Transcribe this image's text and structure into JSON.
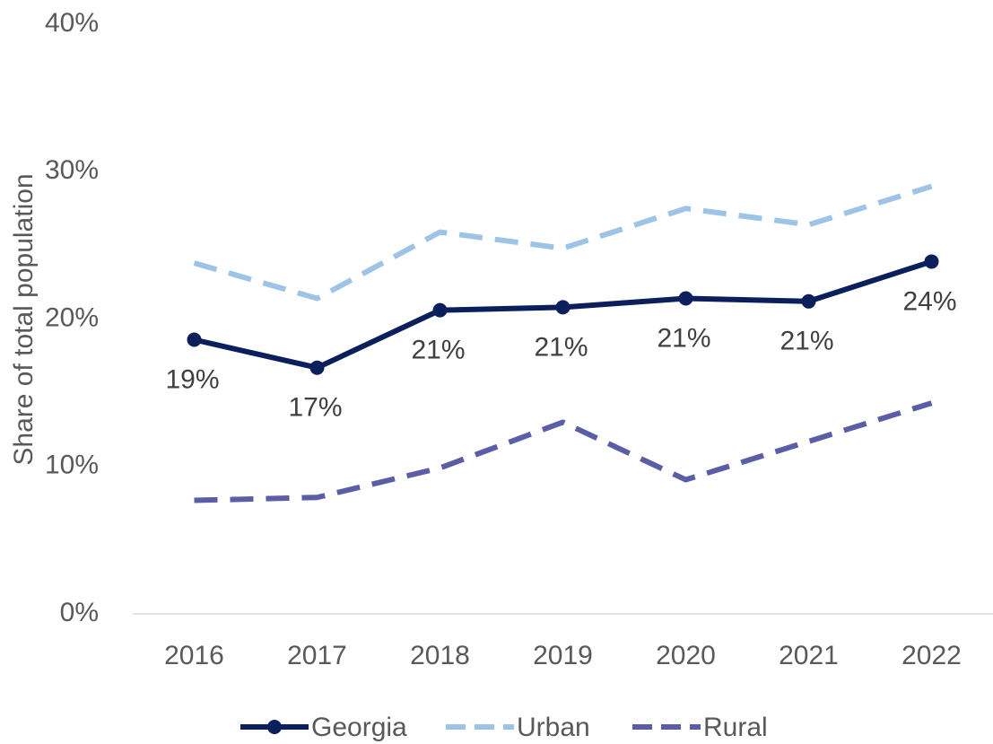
{
  "chart_data": {
    "type": "line",
    "y_label": "Share of total population",
    "categories": [
      "2016",
      "2017",
      "2018",
      "2019",
      "2020",
      "2021",
      "2022"
    ],
    "series": [
      {
        "name": "Georgia",
        "color": "#0b1f5c",
        "values": [
          18.6,
          16.7,
          20.6,
          20.8,
          21.4,
          21.2,
          23.9
        ],
        "value_labels": [
          "19%",
          "17%",
          "21%",
          "21%",
          "21%",
          "21%",
          "24%"
        ]
      },
      {
        "name": "Urban",
        "color": "#9dc3e6",
        "values": [
          23.8,
          21.4,
          25.9,
          24.8,
          27.5,
          26.4,
          29.0
        ]
      },
      {
        "name": "Rural",
        "color": "#5b5ea6",
        "values": [
          7.7,
          7.9,
          9.9,
          13.0,
          9.1,
          11.7,
          14.3
        ]
      }
    ],
    "ylim": [
      0,
      40
    ],
    "yticks": [
      {
        "value": 0,
        "label": "0%"
      },
      {
        "value": 10,
        "label": "10%"
      },
      {
        "value": 20,
        "label": "20%"
      },
      {
        "value": 30,
        "label": "30%"
      },
      {
        "value": 40,
        "label": "40%"
      }
    ],
    "grid": false,
    "legend": "bottom"
  }
}
